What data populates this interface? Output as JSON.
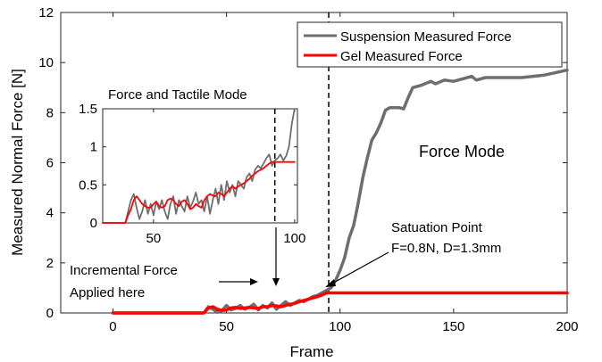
{
  "chart_data": [
    {
      "type": "line",
      "xlabel": "Frame",
      "ylabel": "Measured Normal Force [N]",
      "xlim": [
        -23,
        200
      ],
      "ylim": [
        0,
        12
      ],
      "xticks": [
        0,
        50,
        100,
        150,
        200
      ],
      "yticks": [
        0,
        2,
        4,
        6,
        8,
        10,
        12
      ],
      "grid": false,
      "legend_position": "top-right",
      "series": [
        {
          "name": "Suspension Measured Force",
          "color": "#6e6e6e",
          "points": [
            [
              0,
              0
            ],
            [
              40,
              0
            ],
            [
              42,
              0.25
            ],
            [
              44,
              0.15
            ],
            [
              46,
              0.02
            ],
            [
              48,
              0.1
            ],
            [
              50,
              0.3
            ],
            [
              52,
              0.12
            ],
            [
              54,
              0.18
            ],
            [
              56,
              0.3
            ],
            [
              58,
              0.15
            ],
            [
              60,
              0.22
            ],
            [
              62,
              0.35
            ],
            [
              64,
              0.12
            ],
            [
              66,
              0.3
            ],
            [
              68,
              0.2
            ],
            [
              70,
              0.4
            ],
            [
              72,
              0.15
            ],
            [
              74,
              0.3
            ],
            [
              76,
              0.45
            ],
            [
              78,
              0.3
            ],
            [
              80,
              0.4
            ],
            [
              82,
              0.5
            ],
            [
              84,
              0.45
            ],
            [
              86,
              0.55
            ],
            [
              88,
              0.65
            ],
            [
              90,
              0.7
            ],
            [
              92,
              0.8
            ],
            [
              94,
              0.9
            ],
            [
              96,
              1.0
            ],
            [
              98,
              1.3
            ],
            [
              100,
              1.7
            ],
            [
              102,
              2.2
            ],
            [
              104,
              3.0
            ],
            [
              106,
              3.5
            ],
            [
              108,
              4.4
            ],
            [
              110,
              5.4
            ],
            [
              112,
              6.2
            ],
            [
              114,
              6.9
            ],
            [
              116,
              7.2
            ],
            [
              118,
              7.6
            ],
            [
              120,
              8.1
            ],
            [
              122,
              8.2
            ],
            [
              126,
              8.2
            ],
            [
              128,
              8.15
            ],
            [
              130,
              8.6
            ],
            [
              132,
              9.0
            ],
            [
              136,
              9.1
            ],
            [
              140,
              9.25
            ],
            [
              142,
              9.15
            ],
            [
              146,
              9.3
            ],
            [
              150,
              9.25
            ],
            [
              154,
              9.35
            ],
            [
              158,
              9.45
            ],
            [
              160,
              9.3
            ],
            [
              164,
              9.4
            ],
            [
              170,
              9.4
            ],
            [
              180,
              9.4
            ],
            [
              190,
              9.5
            ],
            [
              195,
              9.6
            ],
            [
              200,
              9.7
            ]
          ]
        },
        {
          "name": "Gel Measured Force",
          "color": "#ff0000",
          "points": [
            [
              0,
              0
            ],
            [
              40,
              0
            ],
            [
              42,
              0.2
            ],
            [
              44,
              0.25
            ],
            [
              46,
              0.15
            ],
            [
              48,
              0.1
            ],
            [
              50,
              0.12
            ],
            [
              52,
              0.2
            ],
            [
              54,
              0.22
            ],
            [
              56,
              0.18
            ],
            [
              58,
              0.2
            ],
            [
              60,
              0.22
            ],
            [
              62,
              0.2
            ],
            [
              64,
              0.18
            ],
            [
              66,
              0.25
            ],
            [
              68,
              0.25
            ],
            [
              70,
              0.3
            ],
            [
              72,
              0.28
            ],
            [
              74,
              0.25
            ],
            [
              76,
              0.3
            ],
            [
              78,
              0.35
            ],
            [
              80,
              0.38
            ],
            [
              82,
              0.45
            ],
            [
              84,
              0.5
            ],
            [
              86,
              0.55
            ],
            [
              88,
              0.6
            ],
            [
              90,
              0.65
            ],
            [
              92,
              0.72
            ],
            [
              94,
              0.8
            ],
            [
              200,
              0.8
            ]
          ]
        }
      ],
      "annotations": {
        "force_mode": "Force Mode",
        "saturation_line1": "Satuation Point",
        "saturation_line2": "F=0.8N, D=1.3mm",
        "incremental_line1": "Incremental Force",
        "incremental_line2": "Applied here",
        "saturation_frame": 95
      }
    },
    {
      "type": "line",
      "title": "Force and Tactile Mode",
      "xlim": [
        32,
        101
      ],
      "ylim": [
        0,
        1.5
      ],
      "xticks": [
        50,
        100
      ],
      "yticks": [
        0,
        0.5,
        1,
        1.5
      ],
      "ytick_labels": [
        "0",
        "0.5",
        "1",
        "1.5"
      ],
      "grid": false,
      "series": [
        {
          "color": "#6e6e6e",
          "points": [
            [
              32,
              0
            ],
            [
              40,
              0
            ],
            [
              42,
              0.3
            ],
            [
              43,
              0.38
            ],
            [
              44,
              0.2
            ],
            [
              45,
              0.05
            ],
            [
              46,
              0.15
            ],
            [
              47,
              0.3
            ],
            [
              48,
              0.12
            ],
            [
              49,
              0.25
            ],
            [
              50,
              0.1
            ],
            [
              51,
              0.28
            ],
            [
              52,
              0.18
            ],
            [
              53,
              0.3
            ],
            [
              54,
              0.15
            ],
            [
              55,
              0.05
            ],
            [
              56,
              0.25
            ],
            [
              57,
              0.35
            ],
            [
              58,
              0.12
            ],
            [
              59,
              0.3
            ],
            [
              60,
              0.22
            ],
            [
              61,
              0.15
            ],
            [
              62,
              0.35
            ],
            [
              63,
              0.2
            ],
            [
              64,
              0.28
            ],
            [
              65,
              0.4
            ],
            [
              66,
              0.25
            ],
            [
              67,
              0.3
            ],
            [
              68,
              0.15
            ],
            [
              69,
              0.35
            ],
            [
              70,
              0.12
            ],
            [
              71,
              0.3
            ],
            [
              72,
              0.45
            ],
            [
              73,
              0.25
            ],
            [
              74,
              0.5
            ],
            [
              75,
              0.3
            ],
            [
              76,
              0.55
            ],
            [
              77,
              0.4
            ],
            [
              78,
              0.5
            ],
            [
              79,
              0.35
            ],
            [
              80,
              0.55
            ],
            [
              81,
              0.5
            ],
            [
              82,
              0.45
            ],
            [
              83,
              0.6
            ],
            [
              84,
              0.65
            ],
            [
              85,
              0.55
            ],
            [
              86,
              0.7
            ],
            [
              87,
              0.75
            ],
            [
              88,
              0.72
            ],
            [
              89,
              0.78
            ],
            [
              90,
              0.85
            ],
            [
              91,
              0.9
            ],
            [
              92,
              0.75
            ],
            [
              93,
              0.82
            ],
            [
              94,
              0.85
            ],
            [
              95,
              0.9
            ],
            [
              96,
              0.82
            ],
            [
              97,
              0.88
            ],
            [
              98,
              1.0
            ],
            [
              99,
              1.3
            ],
            [
              100,
              1.55
            ]
          ]
        },
        {
          "color": "#ff0000",
          "points": [
            [
              32,
              0
            ],
            [
              40,
              0
            ],
            [
              41,
              0.1
            ],
            [
              42,
              0.18
            ],
            [
              43,
              0.3
            ],
            [
              44,
              0.35
            ],
            [
              45,
              0.3
            ],
            [
              46,
              0.25
            ],
            [
              47,
              0.22
            ],
            [
              48,
              0.2
            ],
            [
              49,
              0.2
            ],
            [
              50,
              0.25
            ],
            [
              51,
              0.28
            ],
            [
              52,
              0.22
            ],
            [
              53,
              0.2
            ],
            [
              54,
              0.22
            ],
            [
              55,
              0.3
            ],
            [
              56,
              0.32
            ],
            [
              57,
              0.3
            ],
            [
              58,
              0.25
            ],
            [
              59,
              0.22
            ],
            [
              60,
              0.28
            ],
            [
              61,
              0.3
            ],
            [
              62,
              0.25
            ],
            [
              63,
              0.18
            ],
            [
              64,
              0.2
            ],
            [
              65,
              0.25
            ],
            [
              66,
              0.22
            ],
            [
              67,
              0.2
            ],
            [
              68,
              0.3
            ],
            [
              69,
              0.35
            ],
            [
              70,
              0.38
            ],
            [
              71,
              0.36
            ],
            [
              72,
              0.35
            ],
            [
              73,
              0.4
            ],
            [
              74,
              0.38
            ],
            [
              75,
              0.35
            ],
            [
              76,
              0.4
            ],
            [
              77,
              0.45
            ],
            [
              78,
              0.48
            ],
            [
              79,
              0.45
            ],
            [
              80,
              0.48
            ],
            [
              81,
              0.5
            ],
            [
              82,
              0.52
            ],
            [
              83,
              0.55
            ],
            [
              84,
              0.58
            ],
            [
              85,
              0.62
            ],
            [
              86,
              0.65
            ],
            [
              87,
              0.68
            ],
            [
              88,
              0.7
            ],
            [
              89,
              0.72
            ],
            [
              90,
              0.75
            ],
            [
              91,
              0.78
            ],
            [
              92,
              0.8
            ],
            [
              93,
              0.8
            ],
            [
              100,
              0.8
            ]
          ]
        }
      ],
      "saturation_frame": 93
    }
  ]
}
